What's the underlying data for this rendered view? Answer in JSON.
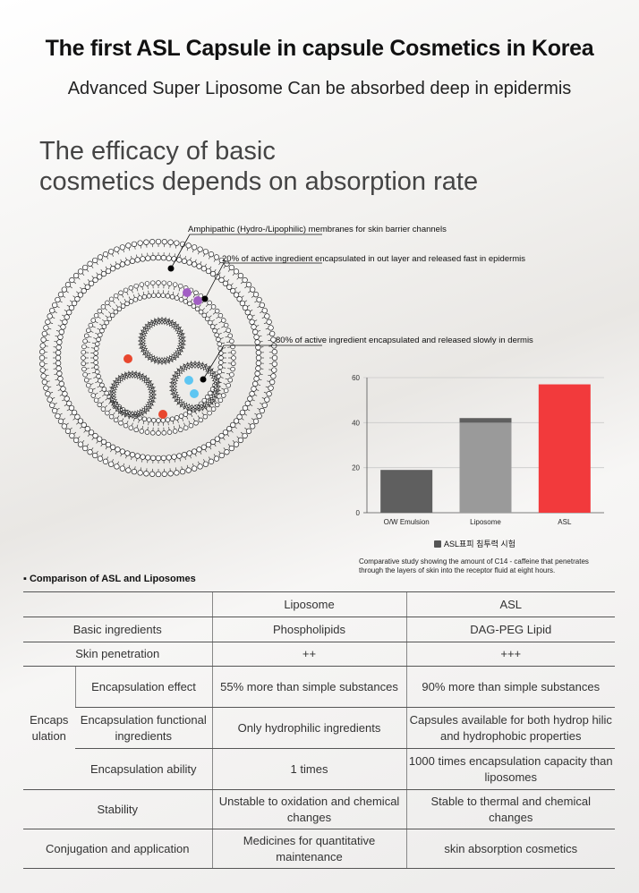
{
  "title": "The first ASL Capsule in capsule Cosmetics in Korea",
  "subtitle": "Advanced Super Liposome Can be absorbed deep in epidermis",
  "headline": {
    "line1": "The efficacy of basic",
    "line2": "cosmetics depends on absorption rate"
  },
  "diagram": {
    "callout_1": "Amphipathic (Hydro-/Lipophilic) membranes for skin barrier channels",
    "callout_2": "20% of active ingredient encapsulated in out layer and released fast in epidermis",
    "callout_3": "80% of active ingredient encapsulated and released slowly in dermis",
    "colors": {
      "purple_dot": "#a25ec4",
      "red_dot": "#e8472e",
      "blue_dot": "#5ec6f2"
    }
  },
  "chart_data": {
    "type": "bar",
    "categories": [
      "O/W Emulsion",
      "Liposome",
      "ASL"
    ],
    "values": [
      19,
      42,
      57
    ],
    "ylim": [
      0,
      60
    ],
    "yticks": [
      0,
      20,
      40,
      60
    ],
    "colors": [
      "#5f5f5f",
      "#9a9a9a",
      "#f23a3c"
    ],
    "legend": "ASL표피 침투력 시험",
    "legend_position": "bottom"
  },
  "chart_caption": {
    "line1": "Comparative study showing the amount of C14 - caffeine that penetrates",
    "line2": "through the layers of skin into the receptor fluid at eight hours."
  },
  "table": {
    "title": "Comparison of ASL and Liposomes",
    "col_liposome": "Liposome",
    "col_asl": "ASL",
    "group_encapsulation": "Encaps ulation",
    "rows": {
      "basic": {
        "label": "Basic ingredients",
        "liposome": "Phospholipids",
        "asl": "DAG-PEG Lipid"
      },
      "skin": {
        "label": "Skin penetration",
        "liposome": "++",
        "asl": "+++"
      },
      "effect": {
        "label": "Encapsulation effect",
        "liposome": "55% more than simple substances",
        "asl": "90% more than simple substances"
      },
      "functional": {
        "label": "Encapsulation functional ingredients",
        "liposome": "Only hydrophilic ingredients",
        "asl": "Capsules available for both hydrop hilic and hydrophobic properties"
      },
      "ability": {
        "label": "Encapsulation ability",
        "liposome": "1 times",
        "asl": "1000 times encapsulation capacity than liposomes"
      },
      "stability": {
        "label": "Stability",
        "liposome": "Unstable to oxidation and chemical changes",
        "asl": "Stable to thermal and chemical changes"
      },
      "conjugation": {
        "label": "Conjugation and application",
        "liposome": "Medicines for quantitative maintenance",
        "asl": "skin absorption cosmetics"
      }
    }
  }
}
